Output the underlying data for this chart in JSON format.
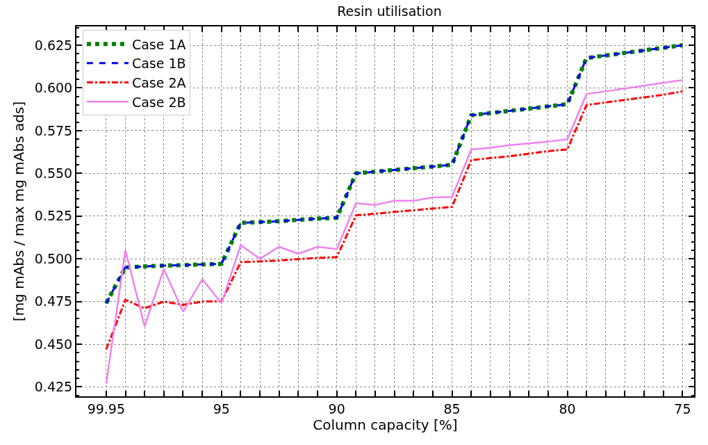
{
  "chart_data": {
    "type": "line",
    "title": "Resin utilisation",
    "xlabel": "Column capacity [%]",
    "ylabel": "[mg mAbs / max mg mAbs ads]",
    "categories": [
      "99.95",
      null,
      null,
      null,
      null,
      null,
      "95",
      null,
      null,
      null,
      null,
      null,
      "90",
      null,
      null,
      null,
      null,
      null,
      "85",
      null,
      null,
      null,
      null,
      null,
      "80",
      null,
      null,
      null,
      null,
      null,
      "75"
    ],
    "ylim": [
      0.4195,
      0.636
    ],
    "yticks": [
      {
        "value": 0.425,
        "label": "0.425"
      },
      {
        "value": 0.45,
        "label": "0.450"
      },
      {
        "value": 0.475,
        "label": "0.475"
      },
      {
        "value": 0.5,
        "label": "0.500"
      },
      {
        "value": 0.525,
        "label": "0.525"
      },
      {
        "value": 0.55,
        "label": "0.550"
      },
      {
        "value": 0.575,
        "label": "0.575"
      },
      {
        "value": 0.6,
        "label": "0.600"
      },
      {
        "value": 0.625,
        "label": "0.625"
      }
    ],
    "grid": true,
    "legend": "top left",
    "marker": "none",
    "series": [
      {
        "name": "Case 1A",
        "color": "#008000",
        "line_style": "dotted",
        "values": [
          0.474,
          0.495,
          0.4955,
          0.496,
          0.4963,
          0.4967,
          0.497,
          0.521,
          0.5215,
          0.522,
          0.5228,
          0.5235,
          0.524,
          0.55,
          0.551,
          0.552,
          0.553,
          0.554,
          0.555,
          0.584,
          0.5853,
          0.5866,
          0.5879,
          0.5892,
          0.5905,
          0.6175,
          0.619,
          0.6205,
          0.622,
          0.6235,
          0.625
        ]
      },
      {
        "name": "Case 1B",
        "color": "#0000ff",
        "line_style": "dashed",
        "values": [
          0.474,
          0.495,
          0.4955,
          0.496,
          0.4963,
          0.4967,
          0.497,
          0.521,
          0.5215,
          0.522,
          0.5228,
          0.5235,
          0.524,
          0.55,
          0.551,
          0.552,
          0.553,
          0.554,
          0.555,
          0.584,
          0.5853,
          0.5866,
          0.5879,
          0.5892,
          0.5905,
          0.6175,
          0.619,
          0.6205,
          0.622,
          0.6235,
          0.625
        ]
      },
      {
        "name": "Case 2A",
        "color": "#ff0000",
        "line_style": "dashdot",
        "values": [
          0.447,
          0.476,
          0.471,
          0.475,
          0.473,
          0.475,
          0.475,
          0.498,
          0.4985,
          0.499,
          0.4998,
          0.5005,
          0.501,
          0.5254,
          0.5264,
          0.5274,
          0.5284,
          0.5294,
          0.5304,
          0.5577,
          0.559,
          0.56,
          0.5615,
          0.563,
          0.564,
          0.59,
          0.5915,
          0.593,
          0.5945,
          0.596,
          0.598
        ]
      },
      {
        "name": "Case 2B",
        "color": "#ee82ee",
        "line_style": "solid",
        "values": [
          0.427,
          0.505,
          0.4605,
          0.494,
          0.469,
          0.488,
          0.474,
          0.508,
          0.5,
          0.507,
          0.503,
          0.507,
          0.5057,
          0.5325,
          0.5315,
          0.534,
          0.534,
          0.5359,
          0.5362,
          0.564,
          0.565,
          0.5665,
          0.5675,
          0.5685,
          0.57,
          0.5964,
          0.598,
          0.5997,
          0.6013,
          0.603,
          0.6046
        ]
      }
    ]
  }
}
